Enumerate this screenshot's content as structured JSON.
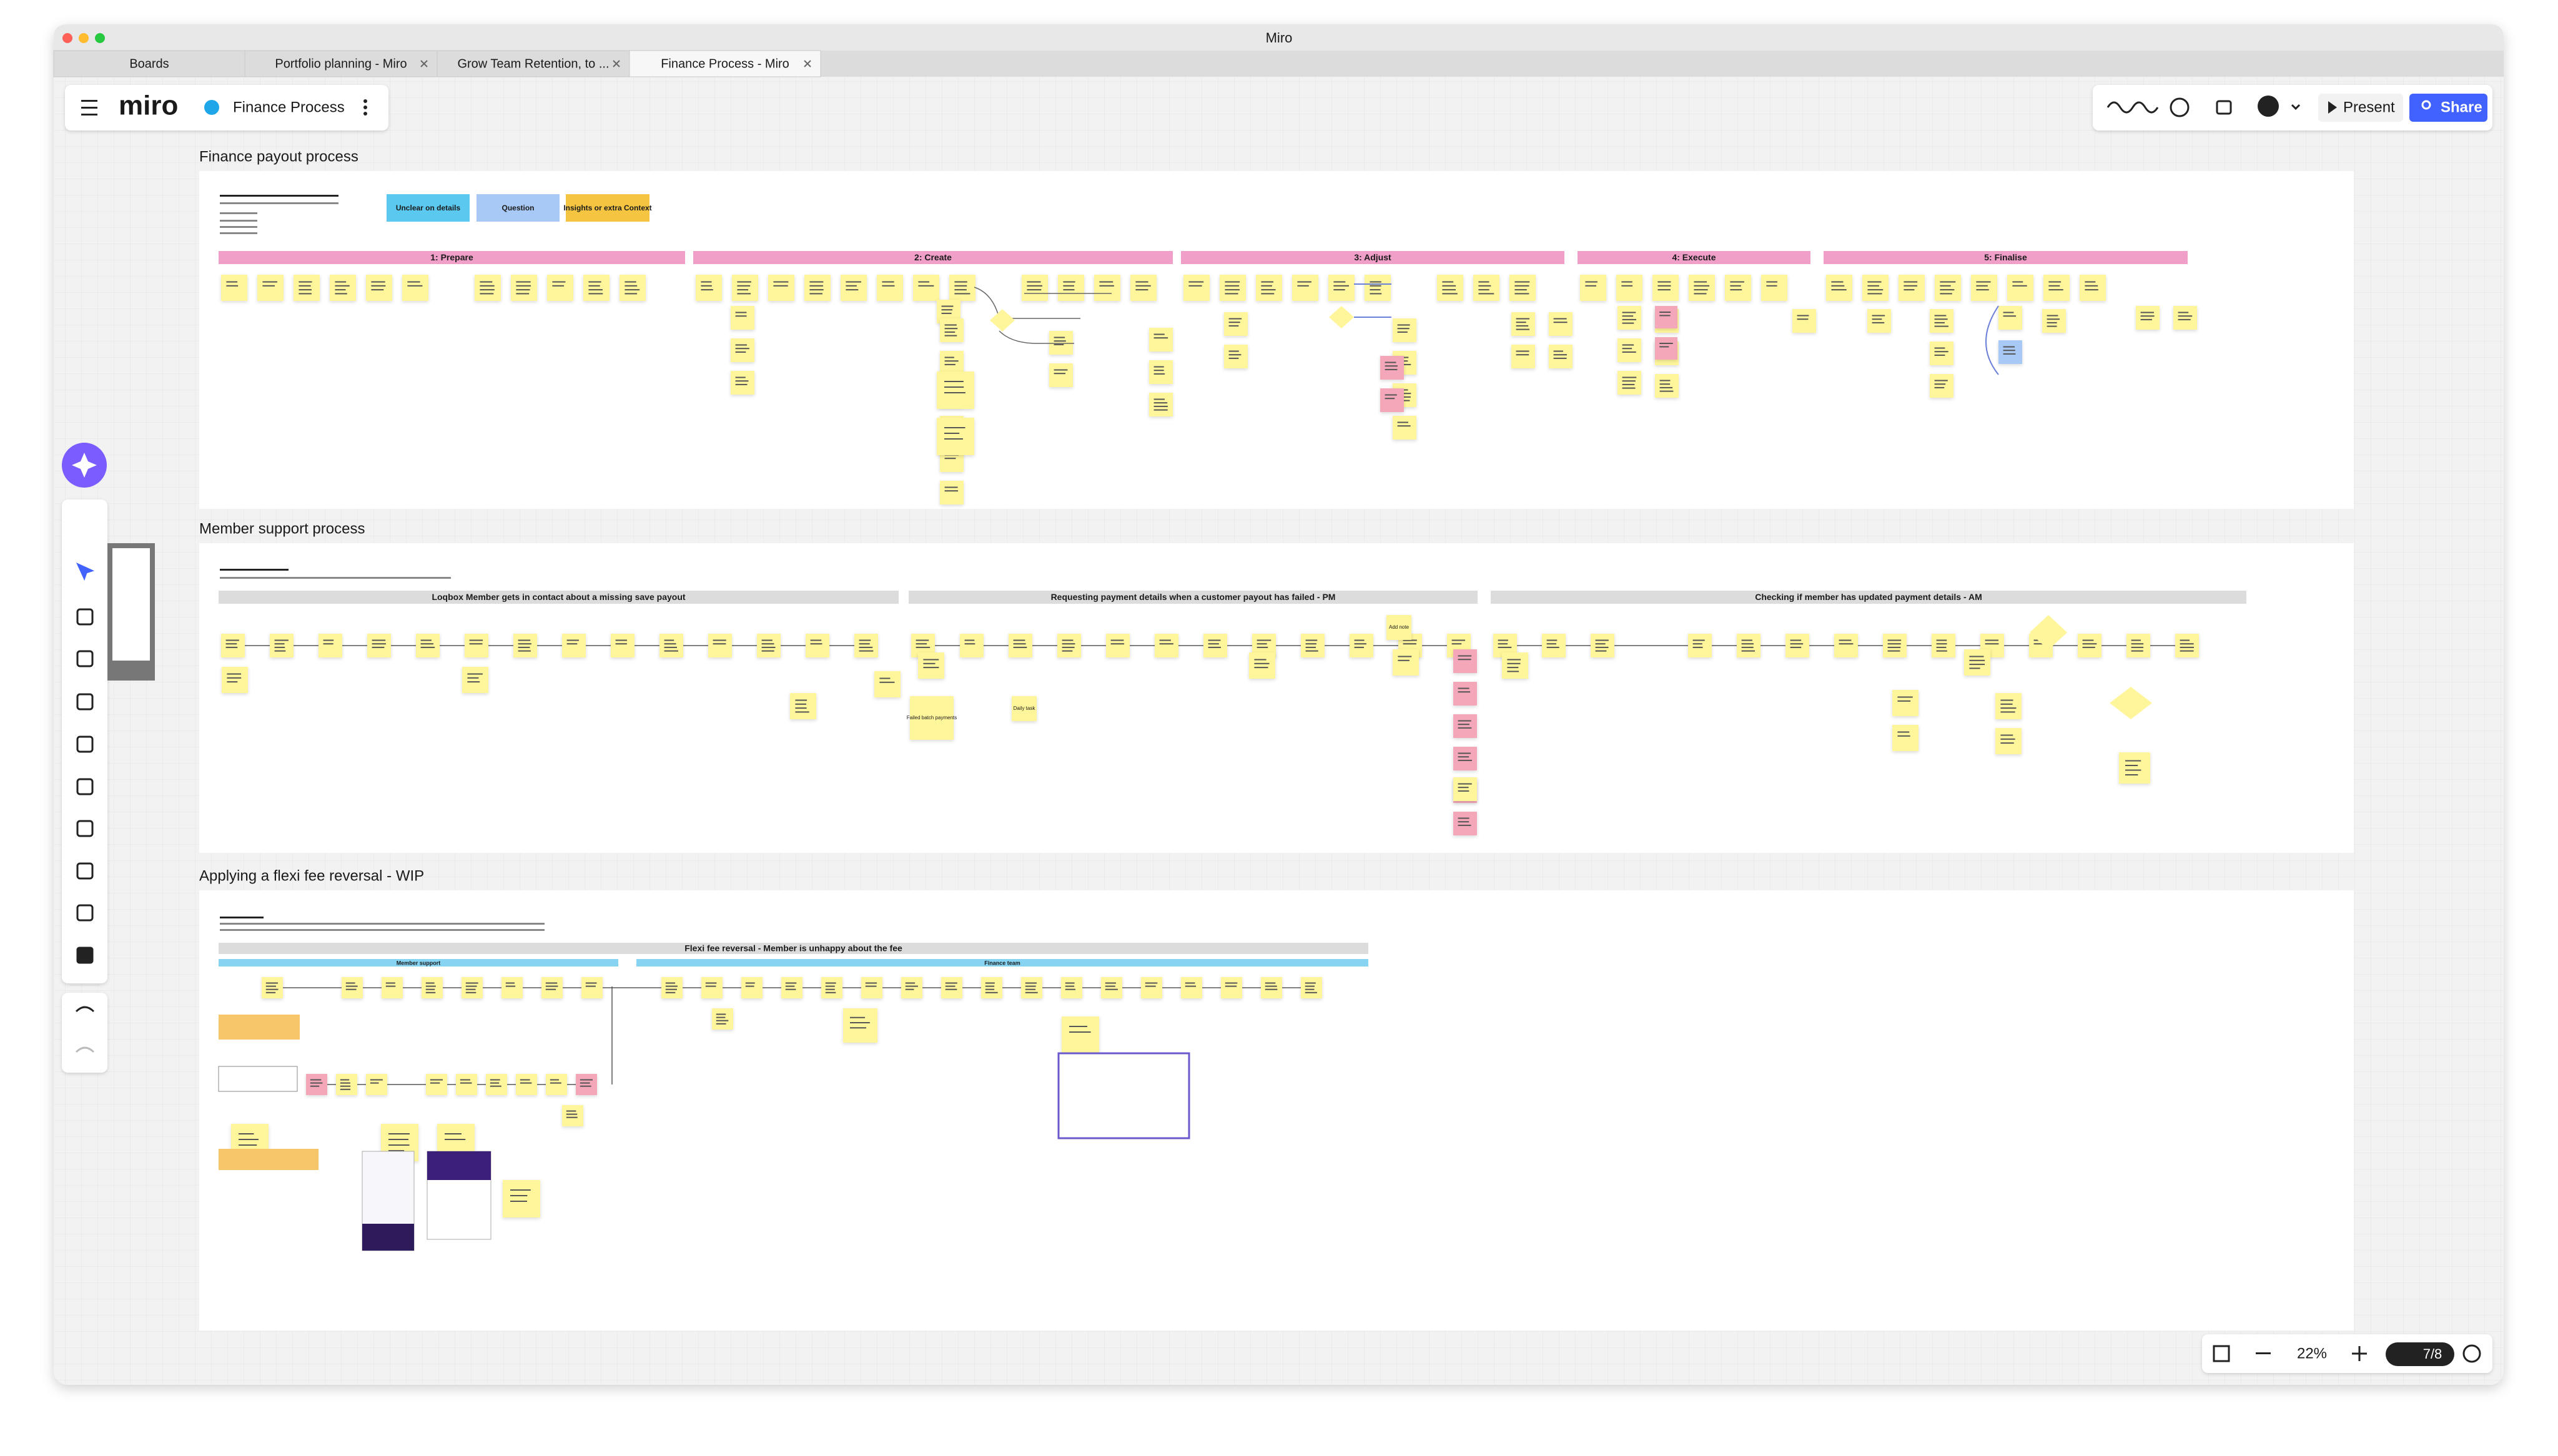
{
  "window": {
    "title": "Miro"
  },
  "tabs": [
    "Boards",
    "Portfolio planning - Miro",
    "Grow Team Retention, to ...",
    "Finance Process - Miro"
  ],
  "toolbar": {
    "logo": "miro",
    "board_name": "Finance Process",
    "present": "Present",
    "share": "Share"
  },
  "frames": [
    {
      "title": "Finance payout process",
      "legend": [
        "Unclear on details",
        "Question",
        "Insights or extra Context"
      ],
      "phases": [
        "1: Prepare",
        "2: Create",
        "3: Adjust",
        "4: Execute",
        "5: Finalise"
      ]
    },
    {
      "title": "Member support process",
      "sections": [
        "Loqbox Member gets in contact about a missing save payout",
        "Requesting payment details when a customer payout has failed - PM",
        "Checking if member has updated payment details - AM"
      ],
      "stickies": [
        "Failed batch payments",
        "Daily task",
        "Add note"
      ]
    },
    {
      "title": "Applying a flexi fee reversal - WIP",
      "header": "Flexi fee reversal - Member is unhappy about the fee",
      "lanes": [
        "Member support",
        "Finance team"
      ]
    }
  ],
  "zoom": {
    "level": "22%",
    "pages": "7/8"
  }
}
